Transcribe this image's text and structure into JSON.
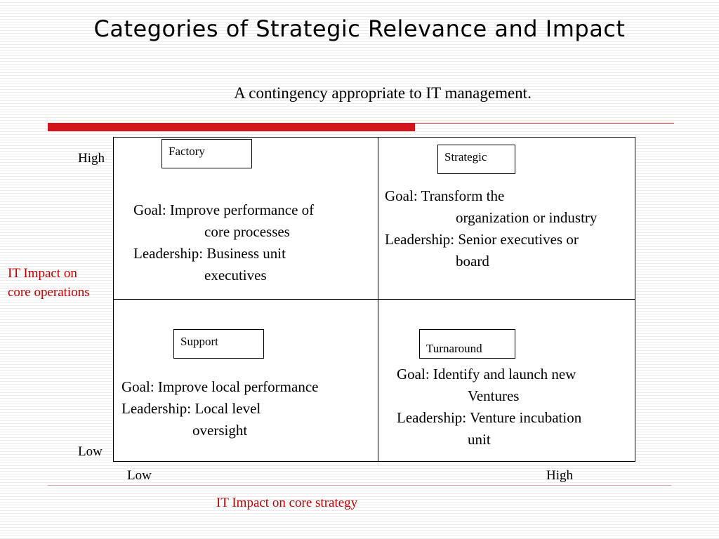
{
  "slide": {
    "title": "Categories of Strategic Relevance and Impact",
    "subtitle": "A contingency appropriate to IT management."
  },
  "axes": {
    "y_high": "High",
    "y_low": "Low",
    "y_label_line1": "IT Impact on",
    "y_label_line2": "core operations",
    "x_low": "Low",
    "x_high": "High",
    "x_label": "IT Impact on core strategy"
  },
  "quadrants": {
    "factory": {
      "label": "Factory",
      "goal_line1": "Goal: Improve performance of",
      "goal_line2": "core processes",
      "leadership_line1": "Leadership:  Business unit",
      "leadership_line2": "executives"
    },
    "strategic": {
      "label": "Strategic",
      "goal_line1": "Goal: Transform the",
      "goal_line2": "organization or industry",
      "leadership_line1": "Leadership:  Senior executives or",
      "leadership_line2": "board"
    },
    "support": {
      "label": "Support",
      "goal_line1": "Goal: Improve local performance",
      "leadership_line1": "Leadership:  Local level",
      "leadership_line2": "oversight"
    },
    "turnaround": {
      "label": "Turnaround",
      "goal_line1": "Goal: Identify and launch new",
      "goal_line2": "Ventures",
      "leadership_line1": "Leadership:  Venture incubation",
      "leadership_line2": "unit"
    }
  },
  "colors": {
    "accent_red": "#d2141c",
    "axis_label_red": "#c00000"
  }
}
